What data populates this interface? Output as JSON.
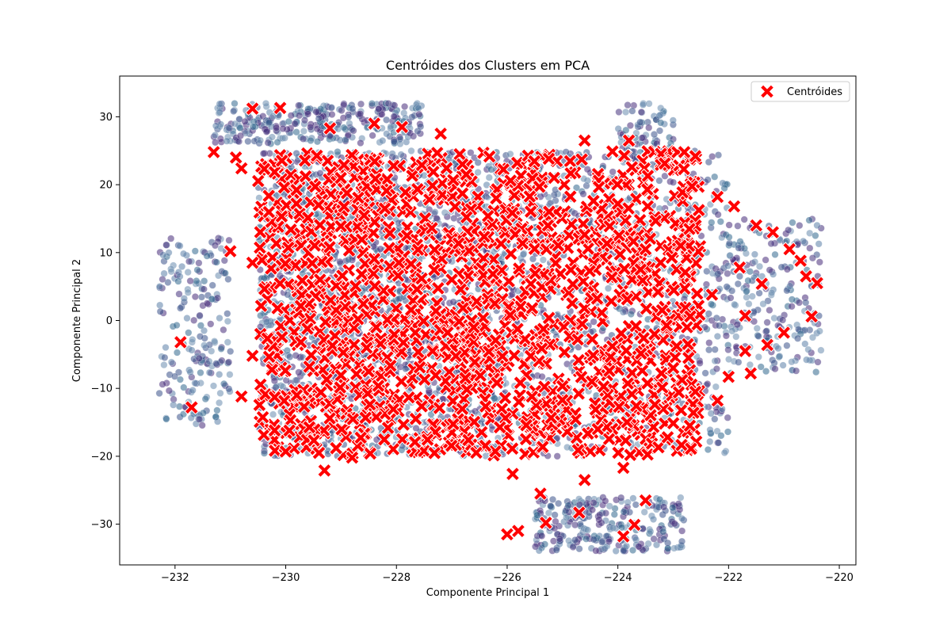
{
  "chart_data": {
    "type": "scatter",
    "title": "Centróides dos Clusters em PCA",
    "xlabel": "Componente Principal 1",
    "ylabel": "Componente Principal 2",
    "xlim": [
      -233.0,
      -219.7
    ],
    "ylim": [
      -36.0,
      36.0
    ],
    "x_ticks": [
      -232,
      -230,
      -228,
      -226,
      -224,
      -222,
      -220
    ],
    "y_ticks": [
      -30,
      -20,
      -10,
      0,
      10,
      20,
      30
    ],
    "x_tick_labels": [
      "−232",
      "−230",
      "−228",
      "−226",
      "−224",
      "−222",
      "−220"
    ],
    "y_tick_labels": [
      "−30",
      "−20",
      "−10",
      "0",
      "10",
      "20",
      "30"
    ],
    "grid": false,
    "legend": {
      "placement": "top-right",
      "entries": [
        {
          "label": "Centróides",
          "marker": "X",
          "color": "#ff0000"
        }
      ]
    },
    "colors": {
      "centroid": "#ff0000",
      "centroid_edge": "#ffffff",
      "points_palette": [
        "#3b528b",
        "#46337e",
        "#31688e",
        "#5b7fa8",
        "#472c7a",
        "#6a8caf"
      ],
      "point_edge": "#ffffff"
    },
    "point_alpha": 0.55,
    "series": [
      {
        "name": "points",
        "marker": "o",
        "regions": [
          {
            "x": [
              -230.5,
              -226.0
            ],
            "y": [
              -20.0,
              25.0
            ],
            "n": 2000
          },
          {
            "x": [
              -226.0,
              -222.0
            ],
            "y": [
              -20.0,
              25.0
            ],
            "n": 900
          },
          {
            "x": [
              -225.5,
              -222.8
            ],
            "y": [
              -34.0,
              -26.0
            ],
            "n": 260
          },
          {
            "x": [
              -232.3,
              -231.0
            ],
            "y": [
              -15.5,
              12.5
            ],
            "n": 200
          },
          {
            "x": [
              -222.0,
              -220.3
            ],
            "y": [
              -8.0,
              15.0
            ],
            "n": 220
          },
          {
            "x": [
              -231.3,
              -227.5
            ],
            "y": [
              26.0,
              32.0
            ],
            "n": 300
          },
          {
            "x": [
              -224.0,
              -223.0
            ],
            "y": [
              23.0,
              32.0
            ],
            "n": 80
          }
        ]
      },
      {
        "name": "Centróides",
        "marker": "X",
        "points": [
          [
            -231.9,
            -3.2
          ],
          [
            -231.7,
            -12.8
          ],
          [
            -231.3,
            24.8
          ],
          [
            -231.0,
            10.2
          ],
          [
            -230.8,
            -11.2
          ],
          [
            -230.6,
            31.2
          ],
          [
            -230.1,
            31.3
          ],
          [
            -230.2,
            -16.2
          ],
          [
            -230.0,
            -19.3
          ],
          [
            -229.2,
            28.3
          ],
          [
            -228.4,
            29.0
          ],
          [
            -227.9,
            28.5
          ],
          [
            -227.2,
            27.5
          ],
          [
            -226.0,
            -31.5
          ],
          [
            -225.8,
            -31.0
          ],
          [
            -225.3,
            -29.8
          ],
          [
            -223.9,
            -31.8
          ],
          [
            -223.7,
            -30.1
          ],
          [
            -223.5,
            -26.5
          ],
          [
            -223.8,
            26.5
          ],
          [
            -224.6,
            26.5
          ],
          [
            -222.8,
            24.8
          ],
          [
            -222.6,
            24.2
          ],
          [
            -222.2,
            18.2
          ],
          [
            -221.9,
            16.8
          ],
          [
            -221.5,
            14.0
          ],
          [
            -221.2,
            13.0
          ],
          [
            -220.9,
            10.5
          ],
          [
            -220.7,
            8.8
          ],
          [
            -220.6,
            6.5
          ],
          [
            -220.4,
            5.5
          ],
          [
            -220.5,
            0.6
          ],
          [
            -221.7,
            -4.5
          ],
          [
            -221.6,
            -7.8
          ],
          [
            -222.0,
            -8.3
          ],
          [
            -222.2,
            -11.8
          ],
          [
            -222.6,
            -10.5
          ],
          [
            -222.7,
            -15.5
          ],
          [
            -223.1,
            -17.2
          ],
          [
            -223.9,
            -21.7
          ],
          [
            -224.6,
            -23.5
          ],
          [
            -224.7,
            -28.3
          ],
          [
            -225.4,
            -25.5
          ],
          [
            -225.9,
            -22.6
          ],
          [
            -226.7,
            -17.6
          ],
          [
            -228.8,
            -20.2
          ],
          [
            -229.3,
            -22.1
          ],
          [
            -229.4,
            -19.5
          ],
          [
            -230.2,
            -11.3
          ],
          [
            -230.6,
            -5.2
          ],
          [
            -230.6,
            8.5
          ],
          [
            -230.8,
            22.4
          ],
          [
            -230.9,
            24.0
          ],
          [
            -221.8,
            7.8
          ],
          [
            -221.4,
            5.4
          ],
          [
            -221.7,
            0.7
          ],
          [
            -221.0,
            -1.8
          ],
          [
            -221.3,
            -3.6
          ],
          [
            -223.2,
            1.5
          ],
          [
            -223.5,
            10.5
          ],
          [
            -222.3,
            3.8
          ],
          [
            -224.1,
            -3.8
          ],
          [
            -223.0,
            -7.0
          ]
        ],
        "dense_fill": {
          "x": [
            -230.5,
            -222.5
          ],
          "y": [
            -20.0,
            25.0
          ],
          "n": 1400
        }
      }
    ]
  }
}
